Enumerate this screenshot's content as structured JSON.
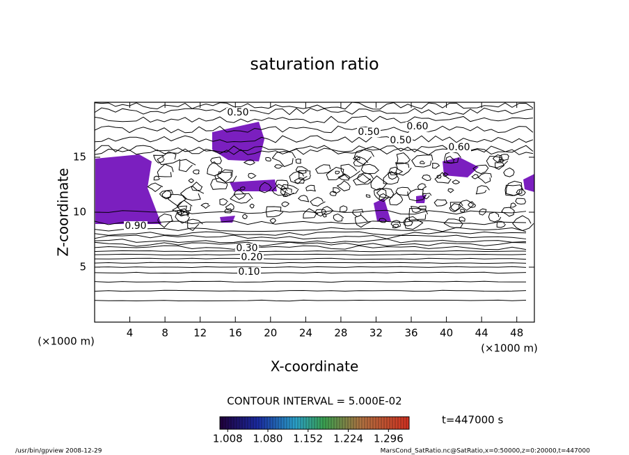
{
  "chart_data": {
    "type": "contour",
    "title": "saturation ratio",
    "x_label": "X-coordinate",
    "y_label": "Z-coordinate",
    "x_unit": "(×1000 m)",
    "y_unit": "(×1000 m)",
    "xlim": [
      0,
      50
    ],
    "xticks": [
      4,
      8,
      12,
      16,
      20,
      24,
      28,
      32,
      36,
      40,
      44,
      48
    ],
    "ylim": [
      0,
      20
    ],
    "yticks": [
      5,
      10,
      15
    ],
    "contour_interval": "CONTOUR INTERVAL = 5.000E-02",
    "contour_labels": [
      "0.50",
      "0.50",
      "0.60",
      "0.50",
      "0.60",
      "0.90",
      "0.30",
      "0.20",
      "0.10"
    ],
    "fill_color": "#7b1fbf",
    "colorbar": {
      "lim": [
        0.994,
        1.333
      ],
      "ticks": [
        1.008,
        {
          "value": 1.08,
          "label": "1.080"
        },
        1.152,
        1.224,
        1.296
      ]
    },
    "time_label": "t=447000 s",
    "footer_left": "/usr/bin/gpview   2008-12-29",
    "footer_right": "MarsCond_SatRatio.nc@SatRatio,x=0:50000,z=0:20000,t=447000"
  }
}
